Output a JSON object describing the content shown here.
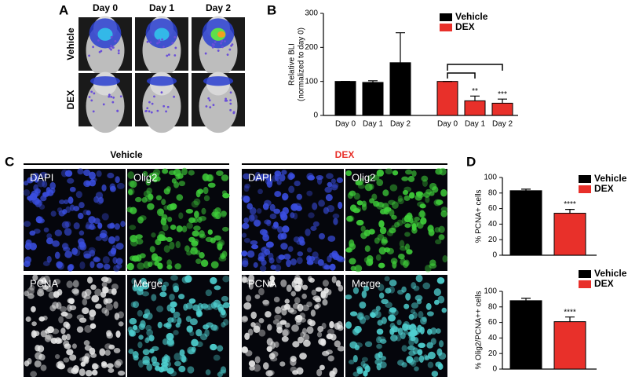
{
  "panel_labels": [
    "A",
    "B",
    "C",
    "D"
  ],
  "panel_a": {
    "columns": [
      "Day 0",
      "Day 1",
      "Day 2"
    ],
    "rows": [
      "Vehicle",
      "DEX"
    ]
  },
  "panel_c": {
    "groups": [
      {
        "title": "Vehicle",
        "color": "#000000"
      },
      {
        "title": "DEX",
        "color": "#e8302a"
      }
    ],
    "channels": [
      "DAPI",
      "Olig2",
      "PCNA",
      "Merge"
    ]
  },
  "chart_data": [
    {
      "type": "bar",
      "ylabel": [
        "Relative BLI",
        "(normalized to day 0)"
      ],
      "categories": [
        "Day 0",
        "Day 1",
        "Day 2"
      ],
      "series": [
        {
          "name": "Vehicle",
          "color": "#000000",
          "values": [
            100,
            97,
            155
          ],
          "errors": [
            0,
            5,
            88
          ]
        },
        {
          "name": "DEX",
          "color": "#e8302a",
          "values": [
            100,
            43,
            36
          ],
          "errors": [
            0,
            14,
            12
          ],
          "sig_labels": [
            null,
            "**",
            "***"
          ]
        }
      ],
      "ylim": [
        0,
        300
      ],
      "yticks": [
        0,
        100,
        200,
        300
      ]
    },
    {
      "type": "bar",
      "ylabel": "% PCNA+ cells",
      "series": [
        {
          "name": "Vehicle",
          "color": "#000000",
          "values": [
            83
          ],
          "errors": [
            2
          ]
        },
        {
          "name": "DEX",
          "color": "#e8302a",
          "values": [
            54
          ],
          "errors": [
            5
          ],
          "sig_labels": [
            "****"
          ]
        }
      ],
      "ylim": [
        0,
        100
      ],
      "yticks": [
        0,
        20,
        40,
        60,
        80,
        100
      ]
    },
    {
      "type": "bar",
      "ylabel": "% Olig2/PCNA++ cells",
      "series": [
        {
          "name": "Vehicle",
          "color": "#000000",
          "values": [
            88
          ],
          "errors": [
            3
          ]
        },
        {
          "name": "DEX",
          "color": "#e8302a",
          "values": [
            61
          ],
          "errors": [
            6
          ],
          "sig_labels": [
            "****"
          ]
        }
      ],
      "ylim": [
        0,
        100
      ],
      "yticks": [
        0,
        20,
        40,
        60,
        80,
        100
      ]
    }
  ]
}
